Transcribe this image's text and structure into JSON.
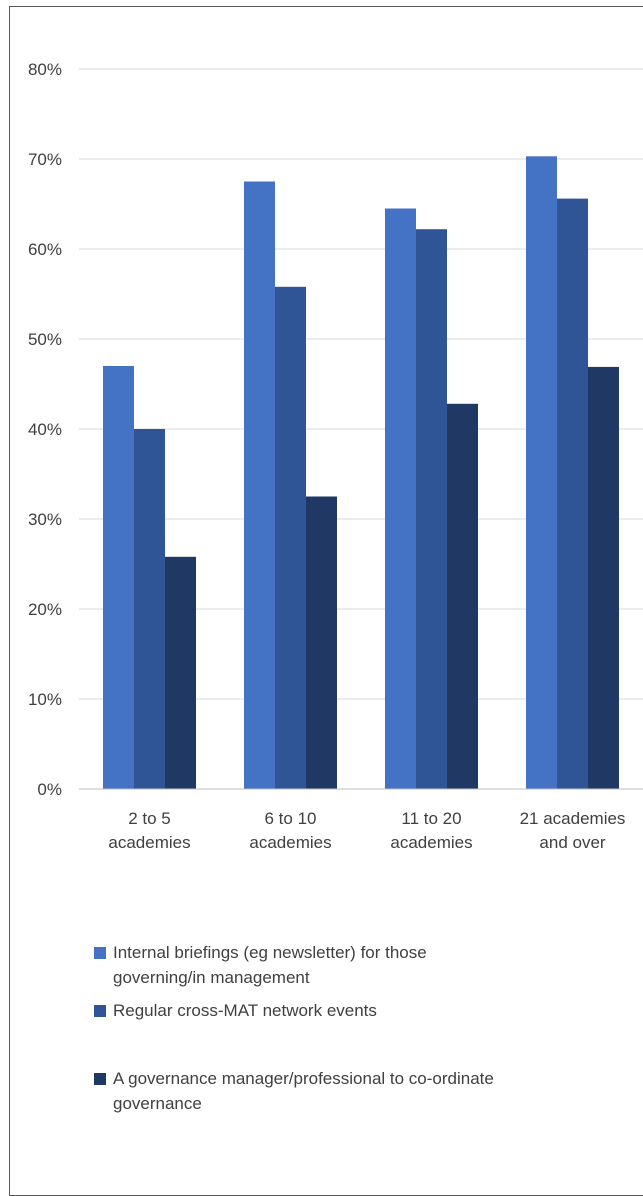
{
  "chart_data": {
    "type": "bar",
    "categories": [
      "2 to 5\nacademies",
      "6 to 10\nacademies",
      "11 to 20\nacademies",
      "21 academies\nand over"
    ],
    "series": [
      {
        "name": "Internal briefings (eg newsletter) for those\ngoverning/in management",
        "color": "#4472C4",
        "values": [
          47,
          67.5,
          64.5,
          70.3
        ]
      },
      {
        "name": "Regular cross-MAT network events",
        "color": "#2F5597",
        "values": [
          40,
          55.8,
          62.2,
          65.6
        ]
      },
      {
        "name": "A governance manager/professional to co-ordinate\ngovernance",
        "color": "#203864",
        "values": [
          25.8,
          32.5,
          42.8,
          46.9
        ]
      }
    ],
    "ylim": [
      0,
      80
    ],
    "yticks": [
      "0%",
      "10%",
      "20%",
      "30%",
      "40%",
      "50%",
      "60%",
      "70%",
      "80%"
    ],
    "grid": true,
    "legend_position": "bottom",
    "title": "",
    "xlabel": "",
    "ylabel": ""
  }
}
